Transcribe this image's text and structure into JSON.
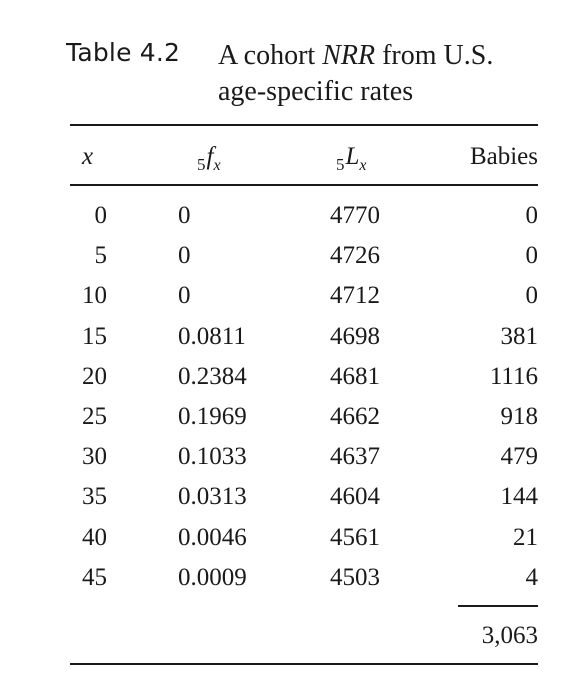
{
  "caption": {
    "label": "Table 4.2",
    "title_line1_pre": "A cohort ",
    "title_line1_em": "NRR",
    "title_line1_post": " from U.S.",
    "title_line2": "age-specific rates"
  },
  "table": {
    "headers": {
      "x": "x",
      "f_prefix": "5",
      "f_symbol": "f",
      "f_sub": "x",
      "l_prefix": "5",
      "l_symbol": "L",
      "l_sub": "x",
      "babies": "Babies"
    },
    "rows": [
      {
        "x": "0",
        "f": "0",
        "l": "4770",
        "babies": "0"
      },
      {
        "x": "5",
        "f": "0",
        "l": "4726",
        "babies": "0"
      },
      {
        "x": "10",
        "f": "0",
        "l": "4712",
        "babies": "0"
      },
      {
        "x": "15",
        "f": "0.0811",
        "l": "4698",
        "babies": "381"
      },
      {
        "x": "20",
        "f": "0.2384",
        "l": "4681",
        "babies": "1116"
      },
      {
        "x": "25",
        "f": "0.1969",
        "l": "4662",
        "babies": "918"
      },
      {
        "x": "30",
        "f": "0.1033",
        "l": "4637",
        "babies": "479"
      },
      {
        "x": "35",
        "f": "0.0313",
        "l": "4604",
        "babies": "144"
      },
      {
        "x": "40",
        "f": "0.0046",
        "l": "4561",
        "babies": "21"
      },
      {
        "x": "45",
        "f": "0.0009",
        "l": "4503",
        "babies": "4"
      }
    ],
    "total": "3,063"
  }
}
